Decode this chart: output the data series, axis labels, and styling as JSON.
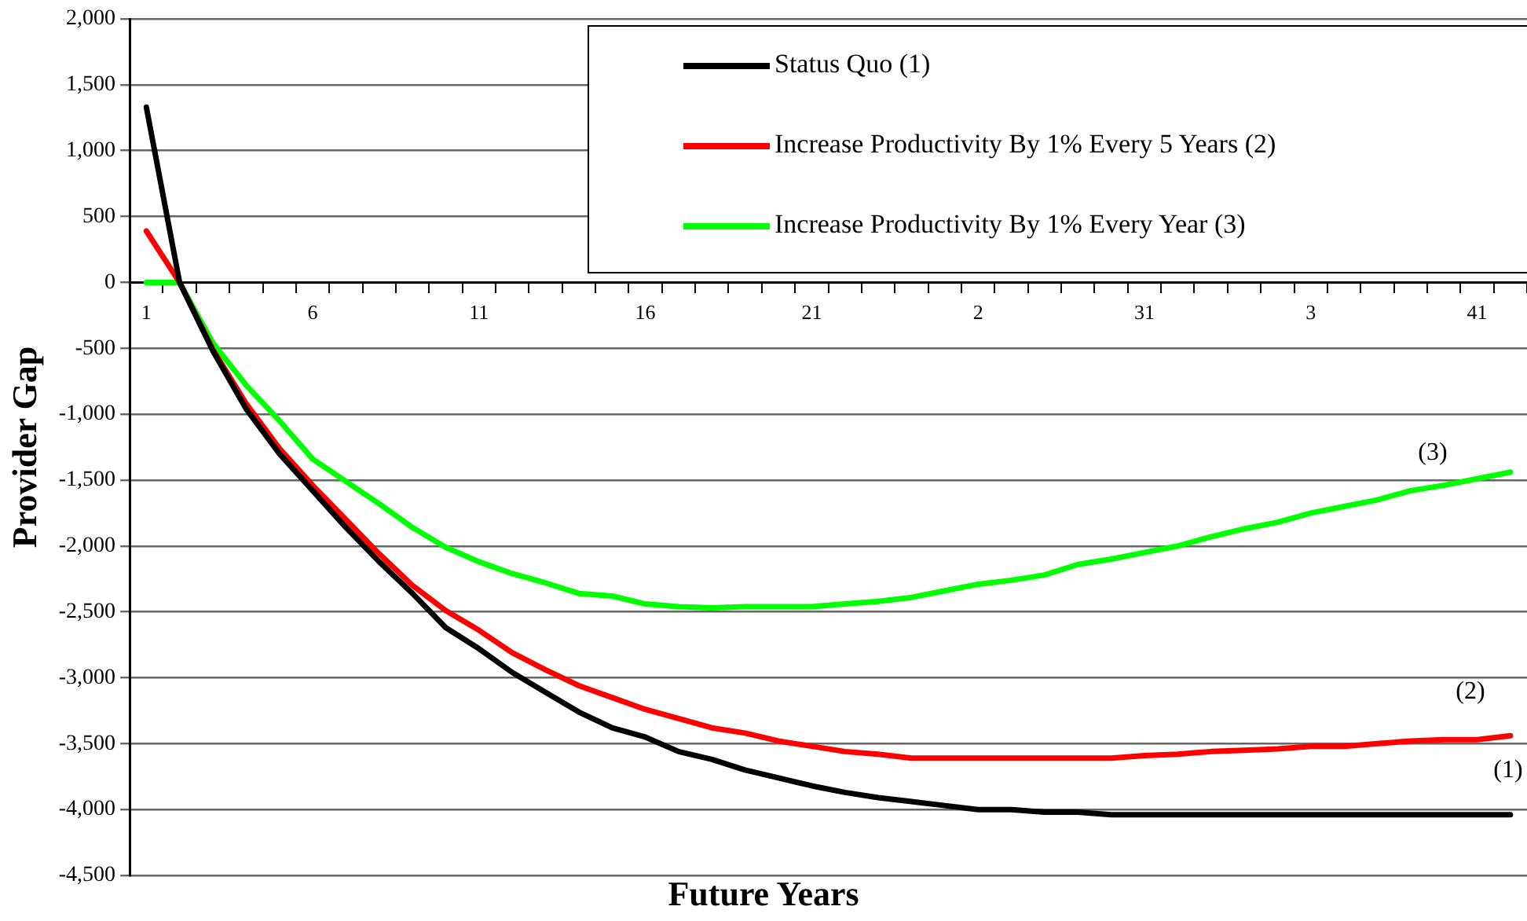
{
  "chart_data": {
    "type": "line",
    "xlabel": "Future Years",
    "ylabel": "Provider Gap",
    "categories": [
      "1",
      null,
      null,
      null,
      null,
      "6",
      null,
      null,
      null,
      null,
      "11",
      null,
      null,
      null,
      null,
      "16",
      null,
      null,
      null,
      null,
      "21",
      null,
      null,
      null,
      null,
      "2",
      null,
      null,
      null,
      null,
      "31",
      null,
      null,
      null,
      null,
      "3",
      null,
      null,
      null,
      null,
      "41",
      null
    ],
    "series": [
      {
        "name": "Status Quo (1)",
        "color": "#000000",
        "values": [
          1330,
          0,
          -520,
          -960,
          -1300,
          -1580,
          -1860,
          -2120,
          -2360,
          -2620,
          -2780,
          -2960,
          -3110,
          -3260,
          -3380,
          -3450,
          -3560,
          -3620,
          -3700,
          -3760,
          -3820,
          -3870,
          -3910,
          -3940,
          -3970,
          -4000,
          -4000,
          -4020,
          -4020,
          -4040,
          -4040,
          -4040,
          -4040,
          -4040,
          -4040,
          -4040,
          -4040,
          -4040,
          -4040,
          -4040,
          -4040,
          -4040
        ]
      },
      {
        "name": "Increase Productivity By 1% Every 5 Years (2)",
        "color": "#ff0000",
        "values": [
          390,
          0,
          -510,
          -920,
          -1260,
          -1540,
          -1800,
          -2060,
          -2300,
          -2490,
          -2640,
          -2810,
          -2940,
          -3060,
          -3150,
          -3240,
          -3310,
          -3380,
          -3420,
          -3480,
          -3520,
          -3560,
          -3580,
          -3610,
          -3610,
          -3610,
          -3610,
          -3610,
          -3610,
          -3610,
          -3590,
          -3580,
          -3560,
          -3550,
          -3540,
          -3520,
          -3520,
          -3500,
          -3480,
          -3470,
          -3470,
          -3440
        ]
      },
      {
        "name": "Increase Productivity By 1% Every Year (3)",
        "color": "#00ff00",
        "values": [
          0,
          0,
          -460,
          -780,
          -1050,
          -1340,
          -1510,
          -1680,
          -1860,
          -2010,
          -2120,
          -2210,
          -2280,
          -2360,
          -2380,
          -2440,
          -2460,
          -2470,
          -2460,
          -2460,
          -2460,
          -2440,
          -2420,
          -2390,
          -2340,
          -2290,
          -2260,
          -2220,
          -2140,
          -2100,
          -2050,
          -2000,
          -1930,
          -1870,
          -1820,
          -1750,
          -1700,
          -1650,
          -1580,
          -1540,
          -1490,
          -1440
        ]
      }
    ],
    "ylim": [
      -4500,
      2000
    ],
    "yticks": [
      {
        "value": -4500,
        "label": "-4,500"
      },
      {
        "value": -4000,
        "label": "-4,000"
      },
      {
        "value": -3500,
        "label": "-3,500"
      },
      {
        "value": -3000,
        "label": "-3,000"
      },
      {
        "value": -2500,
        "label": "-2,500"
      },
      {
        "value": -2000,
        "label": "-2,000"
      },
      {
        "value": -1500,
        "label": "-1,500"
      },
      {
        "value": -1000,
        "label": "-1,000"
      },
      {
        "value": -500,
        "label": "-500"
      },
      {
        "value": 0,
        "label": "0"
      },
      {
        "value": 500,
        "label": "500"
      },
      {
        "value": 1000,
        "label": "1,000"
      },
      {
        "value": 1500,
        "label": "1,500"
      },
      {
        "value": 2000,
        "label": "2,000"
      }
    ],
    "grid": "y",
    "legend": "top right",
    "marker": "none",
    "line_style": "solid",
    "annotations": [
      "(3)",
      "(2)",
      "(1)"
    ]
  }
}
